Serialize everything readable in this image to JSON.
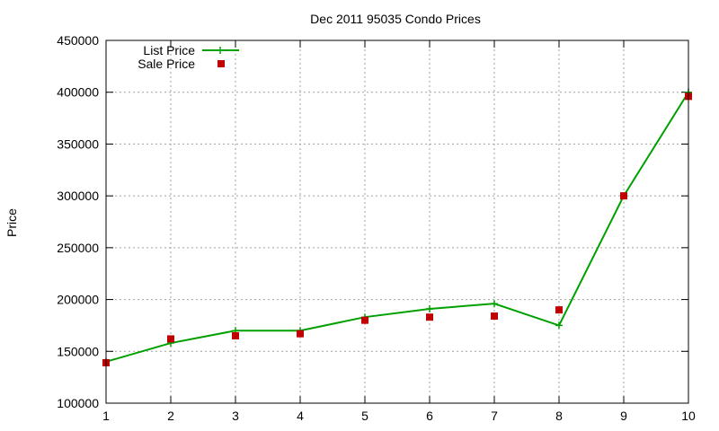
{
  "chart_data": {
    "type": "line",
    "title": "Dec 2011 95035 Condo Prices",
    "xlabel": "",
    "ylabel": "Price",
    "x": [
      1,
      2,
      3,
      4,
      5,
      6,
      7,
      8,
      9,
      10
    ],
    "xlim": [
      1,
      10
    ],
    "ylim": [
      100000,
      450000
    ],
    "xticks": [
      1,
      2,
      3,
      4,
      5,
      6,
      7,
      8,
      9,
      10
    ],
    "yticks": [
      100000,
      150000,
      200000,
      250000,
      300000,
      350000,
      400000,
      450000
    ],
    "grid": true,
    "legend_position": "top-left",
    "series": [
      {
        "name": "List Price",
        "style": "line-with-plus-markers",
        "color": "#00a000",
        "values": [
          140000,
          158000,
          170000,
          170000,
          183000,
          191000,
          196000,
          175000,
          300000,
          400000
        ]
      },
      {
        "name": "Sale Price",
        "style": "square-markers",
        "color": "#c00000",
        "values": [
          139000,
          162000,
          165000,
          167000,
          180000,
          183000,
          184000,
          190000,
          300000,
          396000
        ]
      }
    ]
  }
}
